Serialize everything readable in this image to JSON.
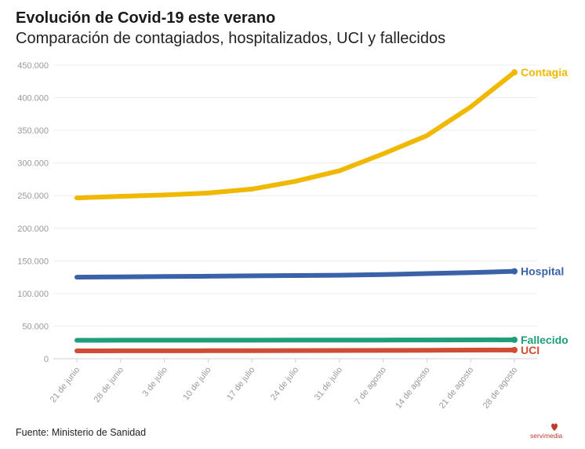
{
  "header": {
    "title": "Evolución de Covid-19 este verano",
    "subtitle": "Comparación de contagiados, hospitalizados, UCI y fallecidos"
  },
  "footer": {
    "source": "Fuente: Ministerio de Sanidad",
    "logo": "servimedia"
  },
  "chart_data": {
    "type": "line",
    "title": "Evolución de Covid-19 este verano",
    "subtitle": "Comparación de contagiados, hospitalizados, UCI y fallecidos",
    "xlabel": "",
    "ylabel": "",
    "ylim": [
      0,
      450000
    ],
    "yticks": [
      0,
      50000,
      100000,
      150000,
      200000,
      250000,
      300000,
      350000,
      400000,
      450000
    ],
    "ytick_labels": [
      "0",
      "50.000",
      "100.000",
      "150.000",
      "200.000",
      "250.000",
      "300.000",
      "350.000",
      "400.000",
      "450.000"
    ],
    "grid": true,
    "categories": [
      "21 de junio",
      "28 de junio",
      "3 de julio",
      "10 de julio",
      "17 de julio",
      "24 de julio",
      "31 de julio",
      "7 de agosto",
      "14 de agosto",
      "21 de agosto",
      "28 de agosto"
    ],
    "series": [
      {
        "name": "Contagiados",
        "label": "Contagia",
        "color": "#f0b800",
        "values": [
          246500,
          249000,
          251000,
          254000,
          260000,
          272000,
          288000,
          314000,
          342000,
          386000,
          439000
        ]
      },
      {
        "name": "Hospitalizados",
        "label": "Hospital",
        "color": "#3a62a8",
        "values": [
          125000,
          125500,
          126000,
          126500,
          127000,
          127500,
          128000,
          129000,
          130500,
          132000,
          134000
        ]
      },
      {
        "name": "Fallecidos",
        "label": "Fallecido",
        "color": "#1f9e7a",
        "values": [
          28300,
          28350,
          28400,
          28450,
          28450,
          28500,
          28500,
          28600,
          28700,
          28900,
          29000
        ]
      },
      {
        "name": "UCI",
        "label": "UCI",
        "color": "#cf4d34",
        "values": [
          12000,
          12100,
          12200,
          12300,
          12400,
          12500,
          12600,
          12800,
          13000,
          13200,
          13400
        ]
      }
    ]
  }
}
